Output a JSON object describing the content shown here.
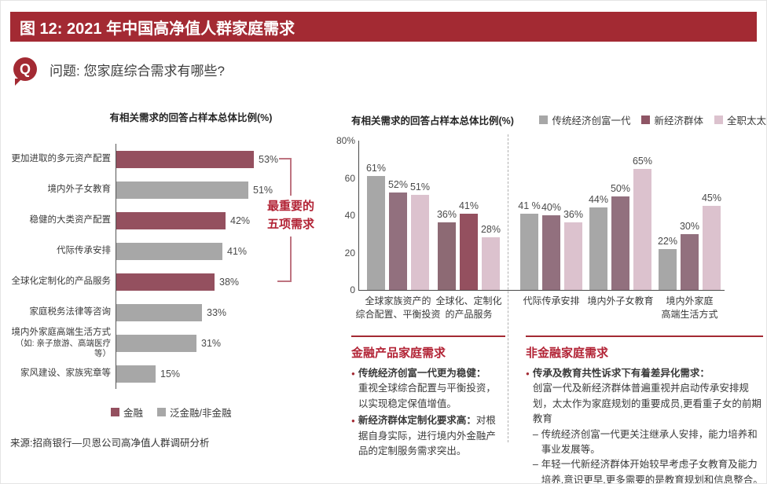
{
  "page": {
    "title": "图 12: 2021 年中国高净值人群家庭需求",
    "question_icon": "Q",
    "question": "问题: 您家庭综合需求有哪些?",
    "source": "来源:招商银行—贝恩公司高净值人群调研分析"
  },
  "colors": {
    "brand_red": "#A32A33",
    "accent_red": "#B22335",
    "bracket_red": "#BE7380",
    "wine": "#94505F",
    "mauve": "#92707E",
    "mauve_muted": "#8D6A74",
    "pink": "#DCC2CE",
    "gray": "#A7A7A7"
  },
  "chart_data": [
    {
      "type": "bar",
      "orientation": "horizontal",
      "title": "有相关需求的回答占样本总体比例(%)",
      "xlim": [
        0,
        60
      ],
      "categories": [
        [
          "更加进取的多元资产配置"
        ],
        [
          "境内外子女教育"
        ],
        [
          "稳健的大类资产配置"
        ],
        [
          "代际传承安排"
        ],
        [
          "全球化定制化的产品服务"
        ],
        [
          "家庭税务法律等咨询"
        ],
        [
          "境内外家庭高端生活方式",
          "（如: 亲子旅游、高端医疗等）"
        ],
        [
          "家风建设、家族宪章等"
        ]
      ],
      "values": [
        53,
        51,
        42,
        41,
        38,
        33,
        31,
        15
      ],
      "value_labels": [
        "53%",
        "51%",
        "42%",
        "41%",
        "38%",
        "33%",
        "31%",
        "15%"
      ],
      "bar_colors": [
        "#94505F",
        "#A7A7A7",
        "#94505F",
        "#A7A7A7",
        "#94505F",
        "#A7A7A7",
        "#A7A7A7",
        "#A7A7A7"
      ],
      "annotation": {
        "lines": [
          "最重要的",
          "五项需求"
        ],
        "applies_to": "前五项"
      },
      "legend": [
        {
          "label": "金融",
          "color": "#94505F"
        },
        {
          "label": "泛金融/非金融",
          "color": "#A7A7A7"
        }
      ]
    },
    {
      "type": "bar",
      "orientation": "vertical",
      "title": "有相关需求的回答占样本总体比例(%)",
      "ylim": [
        0,
        80
      ],
      "y_ticks": [
        {
          "label": "80%",
          "value": 80
        },
        {
          "label": "60",
          "value": 60
        },
        {
          "label": "40",
          "value": 40
        },
        {
          "label": "20",
          "value": 20
        },
        {
          "label": "0",
          "value": 0
        }
      ],
      "categories": [
        [
          "全球家族资产的",
          "综合配置、平衡投资"
        ],
        [
          "全球化、定制化",
          "的产品服务"
        ],
        [
          "代际传承安排"
        ],
        [
          "境内外子女教育"
        ],
        [
          "境内外家庭",
          "高端生活方式"
        ]
      ],
      "series": [
        {
          "name": "传统经济创富一代",
          "values": [
            61,
            36,
            41,
            44,
            22
          ],
          "labels": [
            "61%",
            "36%",
            "41 %",
            "44%",
            "22%"
          ],
          "colors": [
            "#A7A7A7",
            "#8D6A74",
            "#A7A7A7",
            "#A7A7A7",
            "#A7A7A7"
          ]
        },
        {
          "name": "新经济群体",
          "values": [
            52,
            41,
            40,
            50,
            30
          ],
          "labels": [
            "52%",
            "41%",
            "40%",
            "50%",
            "30%"
          ],
          "colors": [
            "#92707E",
            "#94505F",
            "#92707E",
            "#92707E",
            "#92707E"
          ]
        },
        {
          "name": "全职太太",
          "values": [
            51,
            28,
            36,
            65,
            45
          ],
          "labels": [
            "51%",
            "28%",
            "36%",
            "65%",
            "45%"
          ],
          "colors": [
            "#DCC2CE",
            "#DCC2CE",
            "#DCC2CE",
            "#DCC2CE",
            "#DCC2CE"
          ]
        }
      ],
      "legend": [
        {
          "label": "传统经济创富一代",
          "color": "#A7A7A7"
        },
        {
          "label": "新经济群体",
          "color": "#8E5565"
        },
        {
          "label": "全职太太",
          "color": "#DCC2CE"
        }
      ],
      "section_divider_after_category_index": 1
    }
  ],
  "notes": {
    "left": {
      "title": "金融产品家庭需求",
      "bullets": [
        {
          "lead": "传统经济创富一代更为稳健：",
          "body": "重视全球综合配置与平衡投资，以实现稳定保值增值。",
          "body_block": true,
          "subitems": []
        },
        {
          "lead": "新经济群体定制化要求高：",
          "body": "对根据自身实际，进行境内外金融产品的定制服务需求突出。",
          "body_block": false,
          "subitems": []
        }
      ]
    },
    "right": {
      "title": "非金融家庭需求",
      "bullets": [
        {
          "lead": "传承及教育共性诉求下有着差异化需求：",
          "body": "创富一代及新经济群体普遍重视并启动传承安排规划，太太作为家庭规划的重要成员,更看重子女的前期教育",
          "body_block": true,
          "subitems": [
            "传统经济创富一代更关注继承人安排，能力培养和事业发展等。",
            "年轻一代新经济群体开始较早考虑子女教育及能力培养,意识更早,更多需要的是教育规划和信息整合。"
          ]
        }
      ]
    }
  }
}
